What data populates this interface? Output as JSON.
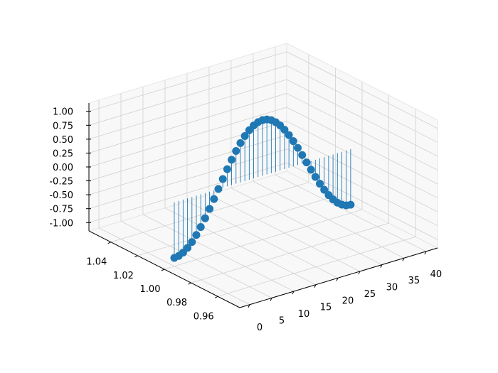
{
  "chart_data": {
    "type": "stem3d",
    "title": "",
    "xlabel": "",
    "ylabel": "",
    "zlabel": "",
    "xlim": [
      -2.26,
      42.6
    ],
    "ylim": [
      0.9436,
      1.0564
    ],
    "zlim": [
      -1.15,
      1.15
    ],
    "grid": true,
    "color": "#1f77b4",
    "x_ticks": [
      "0",
      "5",
      "10",
      "15",
      "20",
      "25",
      "30",
      "35",
      "40"
    ],
    "y_ticks": [
      "0.96",
      "0.98",
      "1.00",
      "1.02",
      "1.04"
    ],
    "z_ticks": [
      "-1.00",
      "-0.75",
      "-0.50",
      "-0.25",
      "0.00",
      "0.25",
      "0.50",
      "0.75",
      "1.00"
    ],
    "stem_bottom": 0,
    "x": [
      0,
      1,
      2,
      3,
      4,
      5,
      6,
      7,
      8,
      9,
      10,
      11,
      12,
      13,
      14,
      15,
      16,
      17,
      18,
      19,
      20,
      21,
      22,
      23,
      24,
      25,
      26,
      27,
      28,
      29,
      30,
      31,
      32,
      33,
      34,
      35,
      36,
      37,
      38,
      39,
      40
    ],
    "y": [
      1,
      1,
      1,
      1,
      1,
      1,
      1,
      1,
      1,
      1,
      1,
      1,
      1,
      1,
      1,
      1,
      1,
      1,
      1,
      1,
      1,
      1,
      1,
      1,
      1,
      1,
      1,
      1,
      1,
      1,
      1,
      1,
      1,
      1,
      1,
      1,
      1,
      1,
      1,
      1,
      1
    ],
    "z": [
      -1,
      -0.988,
      -0.951,
      -0.891,
      -0.809,
      -0.707,
      -0.588,
      -0.454,
      -0.309,
      -0.156,
      0,
      0.156,
      0.309,
      0.454,
      0.588,
      0.707,
      0.809,
      0.891,
      0.951,
      0.988,
      1,
      0.988,
      0.951,
      0.891,
      0.809,
      0.707,
      0.588,
      0.454,
      0.309,
      0.156,
      0,
      -0.156,
      -0.309,
      -0.454,
      -0.588,
      -0.707,
      -0.809,
      -0.891,
      -0.951,
      -0.988,
      -1
    ]
  }
}
